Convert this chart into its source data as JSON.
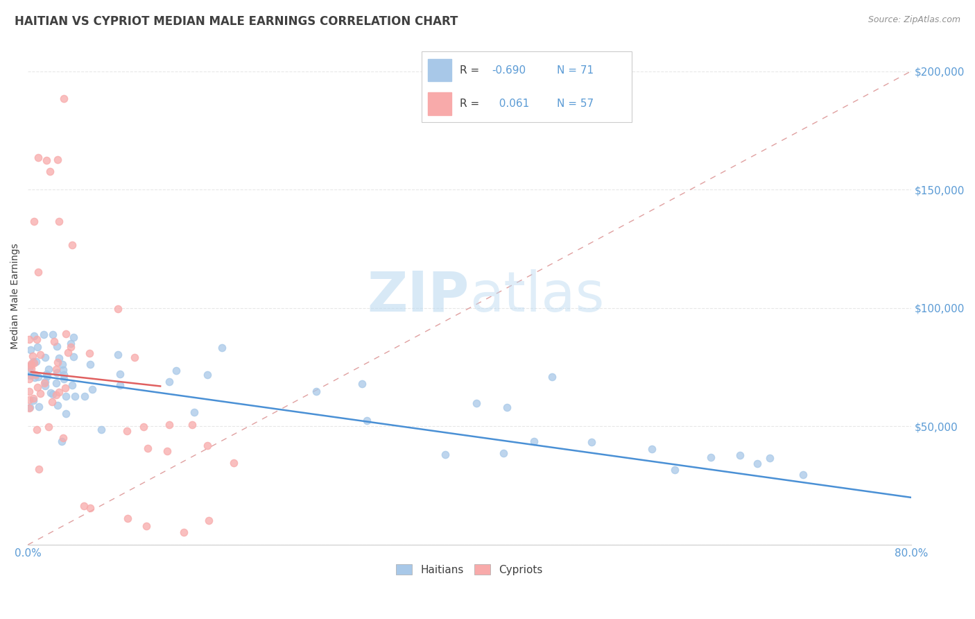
{
  "title": "HAITIAN VS CYPRIOT MEDIAN MALE EARNINGS CORRELATION CHART",
  "source": "Source: ZipAtlas.com",
  "ylabel": "Median Male Earnings",
  "xlim": [
    0.0,
    0.8
  ],
  "ylim": [
    0,
    210000
  ],
  "legend_r_haitian": "-0.690",
  "legend_n_haitian": "71",
  "legend_r_cypriot": "0.061",
  "legend_n_cypriot": "57",
  "haitian_color": "#a8c8e8",
  "cypriot_color": "#f8aaaa",
  "haitian_line_color": "#4a90d5",
  "cypriot_line_color": "#e06060",
  "dash_line_color": "#e0a0a0",
  "watermark_color": "#d8ecf8",
  "background_color": "#ffffff",
  "title_color": "#404040",
  "axis_label_color": "#5b9bd5",
  "source_color": "#909090",
  "legend_label_color": "#404040",
  "legend_value_color": "#5b9bd5",
  "grid_color": "#e8e8e8"
}
